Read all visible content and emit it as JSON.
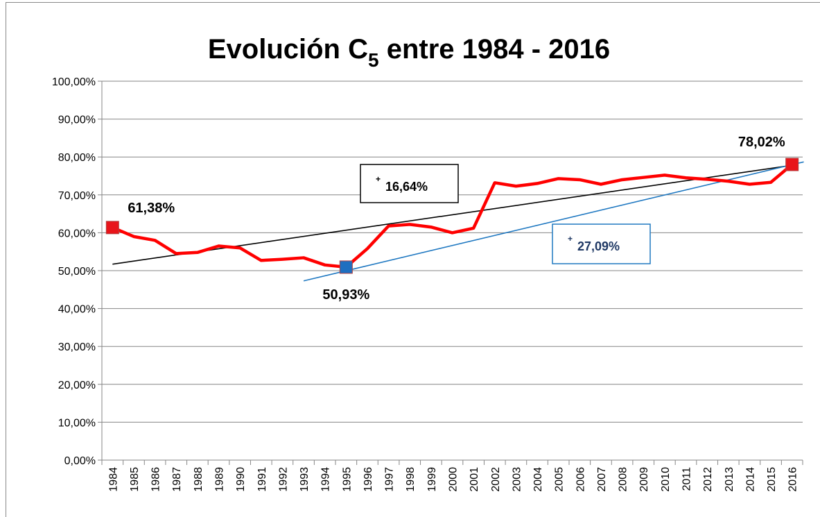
{
  "chart_data": {
    "type": "line",
    "title": {
      "main": "Evolución C",
      "sub": "5",
      "rest": " entre 1984 - 2016"
    },
    "categories": [
      "1984",
      "1985",
      "1986",
      "1987",
      "1988",
      "1989",
      "1990",
      "1991",
      "1992",
      "1993",
      "1994",
      "1995",
      "1996",
      "1997",
      "1998",
      "1999",
      "2000",
      "2001",
      "2002",
      "2003",
      "2004",
      "2005",
      "2006",
      "2007",
      "2008",
      "2009",
      "2010",
      "2011",
      "2012",
      "2013",
      "2014",
      "2015",
      "2016"
    ],
    "series": [
      {
        "color": "#ff0000",
        "values": [
          61.38,
          59.0,
          58.0,
          54.5,
          54.8,
          56.5,
          56.0,
          52.7,
          53.0,
          53.4,
          51.5,
          50.93,
          55.8,
          61.8,
          62.2,
          61.5,
          60.0,
          61.2,
          73.2,
          72.3,
          73.0,
          74.3,
          74.0,
          72.8,
          74.0,
          74.6,
          75.2,
          74.5,
          74.1,
          73.6,
          72.8,
          73.3,
          78.02
        ],
        "value_labels": [
          "61,38%",
          null,
          null,
          null,
          null,
          null,
          null,
          null,
          null,
          null,
          null,
          "50,93%",
          null,
          null,
          null,
          null,
          null,
          null,
          null,
          null,
          null,
          null,
          null,
          null,
          null,
          null,
          null,
          null,
          null,
          null,
          null,
          null,
          "78,02%"
        ],
        "marker_colors": [
          "#e8141a",
          null,
          null,
          null,
          null,
          null,
          null,
          null,
          null,
          null,
          null,
          "#1f6fc0",
          null,
          null,
          null,
          null,
          null,
          null,
          null,
          null,
          null,
          null,
          null,
          null,
          null,
          null,
          null,
          null,
          null,
          null,
          null,
          null,
          "#e8141a"
        ]
      }
    ],
    "trendlines": [
      {
        "color": "#000000",
        "x": [
          0,
          32
        ],
        "y": [
          51.7,
          77.8
        ]
      },
      {
        "color": "#1f78c1",
        "x": [
          9,
          32.55
        ],
        "y": [
          47.3,
          78.7
        ]
      }
    ],
    "annotations": [
      {
        "sign": "+",
        "text": "16,64%",
        "color": "#000000"
      },
      {
        "sign": "+",
        "text": "27,09%",
        "color": "#1f3864",
        "border": "#1f78c1"
      }
    ],
    "ylim": [
      0,
      100
    ],
    "yticks": [
      {
        "value": 0,
        "label": "0,00%"
      },
      {
        "value": 10,
        "label": "10,00%"
      },
      {
        "value": 20,
        "label": "20,00%"
      },
      {
        "value": 30,
        "label": "30,00%"
      },
      {
        "value": 40,
        "label": "40,00%"
      },
      {
        "value": 50,
        "label": "50,00%"
      },
      {
        "value": 60,
        "label": "60,00%"
      },
      {
        "value": 70,
        "label": "70,00%"
      },
      {
        "value": 80,
        "label": "80,00%"
      },
      {
        "value": 90,
        "label": "90,00%"
      },
      {
        "value": 100,
        "label": "100,00%"
      }
    ],
    "grid": true
  }
}
